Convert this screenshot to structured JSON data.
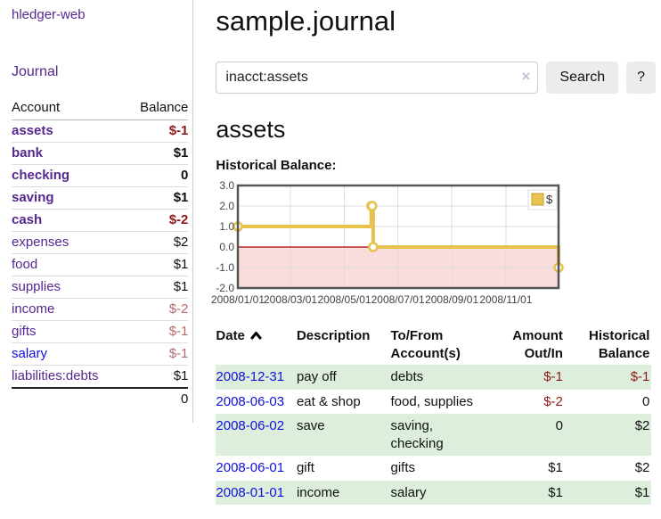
{
  "app": {
    "title": "hledger-web",
    "nav_journal": "Journal"
  },
  "sidebar": {
    "accounts_header": {
      "account": "Account",
      "balance": "Balance"
    },
    "accounts": [
      {
        "name": "assets",
        "level": 1,
        "bold": true,
        "link_color": "purple",
        "balance": "$-1",
        "balance_color": "negative"
      },
      {
        "name": "bank",
        "level": 2,
        "bold": true,
        "link_color": "purple",
        "balance": "$1",
        "balance_color": "normal"
      },
      {
        "name": "checking",
        "level": 3,
        "bold": true,
        "link_color": "purple",
        "balance": "0",
        "balance_color": "normal"
      },
      {
        "name": "saving",
        "level": 3,
        "bold": true,
        "link_color": "purple",
        "balance": "$1",
        "balance_color": "normal"
      },
      {
        "name": "cash",
        "level": 2,
        "bold": true,
        "link_color": "purple",
        "balance": "$-2",
        "balance_color": "negative"
      },
      {
        "name": "expenses",
        "level": 1,
        "bold": false,
        "link_color": "purple",
        "balance": "$2",
        "balance_color": "normal"
      },
      {
        "name": "food",
        "level": 2,
        "bold": false,
        "link_color": "purple",
        "balance": "$1",
        "balance_color": "normal"
      },
      {
        "name": "supplies",
        "level": 2,
        "bold": false,
        "link_color": "purple",
        "balance": "$1",
        "balance_color": "normal"
      },
      {
        "name": "income",
        "level": 1,
        "bold": false,
        "link_color": "purple",
        "balance": "$-2",
        "balance_color": "muted-negative"
      },
      {
        "name": "gifts",
        "level": 2,
        "bold": false,
        "link_color": "purple",
        "balance": "$-1",
        "balance_color": "muted-negative"
      },
      {
        "name": "salary",
        "level": 2,
        "bold": false,
        "link_color": "blue",
        "balance": "$-1",
        "balance_color": "muted-negative"
      },
      {
        "name": "liabilities:debts",
        "level": 1,
        "bold": false,
        "link_color": "purple",
        "balance": "$1",
        "balance_color": "normal"
      }
    ],
    "total": "0"
  },
  "header": {
    "title": "sample.journal"
  },
  "search": {
    "value": "inacct:assets",
    "clear_icon": "×",
    "button": "Search",
    "help_button": "?"
  },
  "account_page": {
    "title": "assets",
    "chart_label": "Historical Balance:"
  },
  "chart_data": {
    "type": "line",
    "step": true,
    "title": "Historical Balance",
    "series": [
      {
        "name": "$",
        "points": [
          {
            "date": "2008-01-01",
            "x": 0.0,
            "balance": 1
          },
          {
            "date": "2008-06-01",
            "x": 0.416,
            "balance": 2
          },
          {
            "date": "2008-06-02",
            "x": 0.419,
            "balance": 2
          },
          {
            "date": "2008-06-03",
            "x": 0.422,
            "balance": 0
          },
          {
            "date": "2008-12-31",
            "x": 1.0,
            "balance": -1
          }
        ]
      }
    ],
    "ylim": [
      -2,
      3
    ],
    "yticks": [
      {
        "label": "3.0",
        "v": 3
      },
      {
        "label": "2.0",
        "v": 2
      },
      {
        "label": "1.0",
        "v": 1
      },
      {
        "label": "0.0",
        "v": 0
      },
      {
        "label": "-1.0",
        "v": -1
      },
      {
        "label": "-2.0",
        "v": -2
      }
    ],
    "xticks": [
      {
        "label": "2008/01/01",
        "x": 0.0
      },
      {
        "label": "2008/03/01",
        "x": 0.164
      },
      {
        "label": "2008/05/01",
        "x": 0.332
      },
      {
        "label": "2008/07/01",
        "x": 0.499
      },
      {
        "label": "2008/09/01",
        "x": 0.667
      },
      {
        "label": "2008/11/01",
        "x": 0.836
      }
    ],
    "grid": true,
    "legend": {
      "label": "$",
      "position": "top-right"
    },
    "colors": {
      "line": "#e6c24e",
      "marker_fill": "#ffffff",
      "negative_region": "#fbdcdc",
      "zero_line": "#a40000",
      "border": "#555555",
      "grid": "#dddddd",
      "text": "#444444",
      "legend_swatch": "#e8c44e",
      "legend_swatch_border": "#bf9c2f",
      "legend_box_border": "#dddddd"
    }
  },
  "transactions": {
    "columns": [
      "Date",
      "Description",
      "To/From Account(s)",
      "Amount Out/In",
      "Historical Balance"
    ],
    "sort": {
      "column": "Date",
      "direction": "asc"
    },
    "rows": [
      {
        "date": "2008-12-31",
        "description": "pay off",
        "accounts": "debts",
        "amount": "$-1",
        "amount_negative": true,
        "balance": "$-1",
        "balance_negative": true
      },
      {
        "date": "2008-06-03",
        "description": "eat & shop",
        "accounts": "food, supplies",
        "amount": "$-2",
        "amount_negative": true,
        "balance": "0",
        "balance_negative": false
      },
      {
        "date": "2008-06-02",
        "description": "save",
        "accounts": "saving, checking",
        "amount": "0",
        "amount_negative": false,
        "balance": "$2",
        "balance_negative": false
      },
      {
        "date": "2008-06-01",
        "description": "gift",
        "accounts": "gifts",
        "amount": "$1",
        "amount_negative": false,
        "balance": "$2",
        "balance_negative": false
      },
      {
        "date": "2008-01-01",
        "description": "income",
        "accounts": "salary",
        "amount": "$1",
        "amount_negative": false,
        "balance": "$1",
        "balance_negative": false
      }
    ]
  },
  "colors": {
    "link_purple": "#56278f",
    "link_blue": "#1010dd",
    "negative": "#8e1717",
    "muted_negative": "#b36a6a",
    "row_stripe_green": "#ddeedd",
    "button_bg": "#ececec"
  }
}
